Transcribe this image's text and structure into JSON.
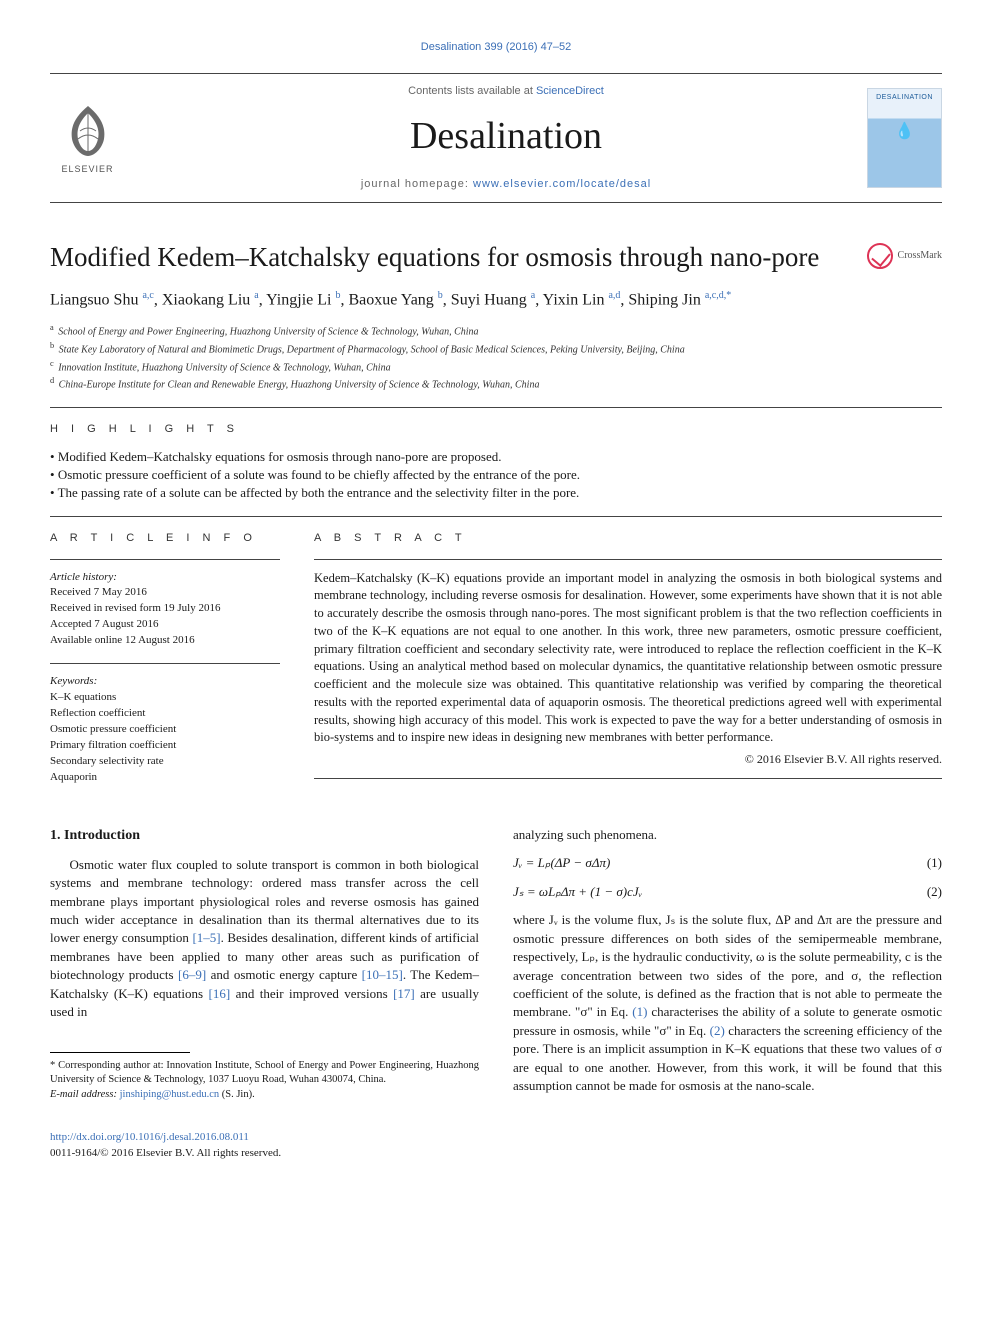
{
  "journal": {
    "citation": "Desalination 399 (2016) 47–52",
    "contents_prefix": "Contents lists available at ",
    "contents_link": "ScienceDirect",
    "title": "Desalination",
    "homepage_prefix": "journal homepage: ",
    "homepage_url": "www.elsevier.com/locate/desal",
    "publisher_logo_text": "ELSEVIER",
    "cover_label": "DESALINATION"
  },
  "crossmark_label": "CrossMark",
  "article": {
    "title": "Modified Kedem–Katchalsky equations for osmosis through nano-pore",
    "authors_html": "Liangsuo Shu <sup>a,c</sup>, Xiaokang Liu <sup>a</sup>, Yingjie Li <sup>b</sup>, Baoxue Yang <sup>b</sup>, Suyi Huang <sup>a</sup>, Yixin Lin <sup>a,d</sup>, Shiping Jin <sup>a,c,d,*</sup>",
    "affiliations": [
      {
        "key": "a",
        "text": "School of Energy and Power Engineering, Huazhong University of Science & Technology, Wuhan, China"
      },
      {
        "key": "b",
        "text": "State Key Laboratory of Natural and Biomimetic Drugs, Department of Pharmacology, School of Basic Medical Sciences, Peking University, Beijing, China"
      },
      {
        "key": "c",
        "text": "Innovation Institute, Huazhong University of Science & Technology, Wuhan, China"
      },
      {
        "key": "d",
        "text": "China-Europe Institute for Clean and Renewable Energy, Huazhong University of Science & Technology, Wuhan, China"
      }
    ]
  },
  "highlights": {
    "label": "H I G H L I G H T S",
    "items": [
      "Modified Kedem–Katchalsky equations for osmosis through nano-pore are proposed.",
      "Osmotic pressure coefficient of a solute was found to be chiefly affected by the entrance of the pore.",
      "The passing rate of a solute can be affected by both the entrance and the selectivity filter in the pore."
    ]
  },
  "article_info": {
    "label": "A R T I C L E   I N F O",
    "history_label": "Article history:",
    "history": [
      "Received 7 May 2016",
      "Received in revised form 19 July 2016",
      "Accepted 7 August 2016",
      "Available online 12 August 2016"
    ],
    "keywords_label": "Keywords:",
    "keywords": [
      "K–K equations",
      "Reflection coefficient",
      "Osmotic pressure coefficient",
      "Primary filtration coefficient",
      "Secondary selectivity rate",
      "Aquaporin"
    ]
  },
  "abstract": {
    "label": "A B S T R A C T",
    "text": "Kedem–Katchalsky (K–K) equations provide an important model in analyzing the osmosis in both biological systems and membrane technology, including reverse osmosis for desalination. However, some experiments have shown that it is not able to accurately describe the osmosis through nano-pores. The most significant problem is that the two reflection coefficients in two of the K–K equations are not equal to one another. In this work, three new parameters, osmotic pressure coefficient, primary filtration coefficient and secondary selectivity rate, were introduced to replace the reflection coefficient in the K–K equations. Using an analytical method based on molecular dynamics, the quantitative relationship between osmotic pressure coefficient and the molecule size was obtained. This quantitative relationship was verified by comparing the theoretical results with the reported experimental data of aquaporin osmosis. The theoretical predictions agreed well with experimental results, showing high accuracy of this model. This work is expected to pave the way for a better understanding of osmosis in bio-systems and to inspire new ideas in designing new membranes with better performance.",
    "copyright": "© 2016 Elsevier B.V. All rights reserved."
  },
  "body": {
    "intro_heading": "1. Introduction",
    "col1_p1_a": "Osmotic water flux coupled to solute transport is common in both biological systems and membrane technology: ordered mass transfer across the cell membrane plays important physiological roles and reverse osmosis has gained much wider acceptance in desalination than its thermal alternatives due to its lower energy consumption ",
    "ref_1_5": "[1–5]",
    "col1_p1_b": ". Besides desalination, different kinds of artificial membranes have been applied to many other areas such as purification of biotechnology products ",
    "ref_6_9": "[6–9]",
    "col1_p1_c": " and osmotic energy capture ",
    "ref_10_15": "[10–15]",
    "col1_p1_d": ". The Kedem–Katchalsky (K–K) equations ",
    "ref_16": "[16]",
    "col1_p1_e": " and their improved versions ",
    "ref_17": "[17]",
    "col1_p1_f": " are usually used in",
    "col2_lead": "analyzing such phenomena.",
    "eq1": "Jᵥ = Lₚ(ΔP − σΔπ)",
    "eq1_num": "(1)",
    "eq2": "Jₛ = ωLₚΔπ + (1 − σ)cJᵥ",
    "eq2_num": "(2)",
    "col2_p2_a": "where Jᵥ is the volume flux, Jₛ is the solute flux, ΔP and Δπ are the pressure and osmotic pressure differences on both sides of the semipermeable membrane, respectively, Lₚ, is the hydraulic conductivity, ω is the solute permeability, c is the average concentration between two sides of the pore, and σ, the reflection coefficient of the solute, is defined as the fraction that is not able to permeate the membrane. \"σ\" in Eq. ",
    "ref_eq1": "(1)",
    "col2_p2_b": " characterises the ability of a solute to generate osmotic pressure in osmosis, while \"σ\" in Eq. ",
    "ref_eq2": "(2)",
    "col2_p2_c": " characters the screening efficiency of the pore. There is an implicit assumption in K–K equations that these two values of σ are equal to one another. However, from this work, it will be found that this assumption cannot be made for osmosis at the nano-scale."
  },
  "footnotes": {
    "corr": "* Corresponding author at: Innovation Institute, School of Energy and Power Engineering, Huazhong University of Science & Technology, 1037 Luoyu Road, Wuhan 430074, China.",
    "email_label": "E-mail address: ",
    "email": "jinshiping@hust.edu.cn",
    "email_suffix": " (S. Jin)."
  },
  "footer": {
    "doi": "http://dx.doi.org/10.1016/j.desal.2016.08.011",
    "issn_line": "0011-9164/© 2016 Elsevier B.V. All rights reserved."
  },
  "colors": {
    "link": "#3b6fb6",
    "rule": "#444444",
    "text": "#1a1a1a",
    "muted": "#666666"
  }
}
